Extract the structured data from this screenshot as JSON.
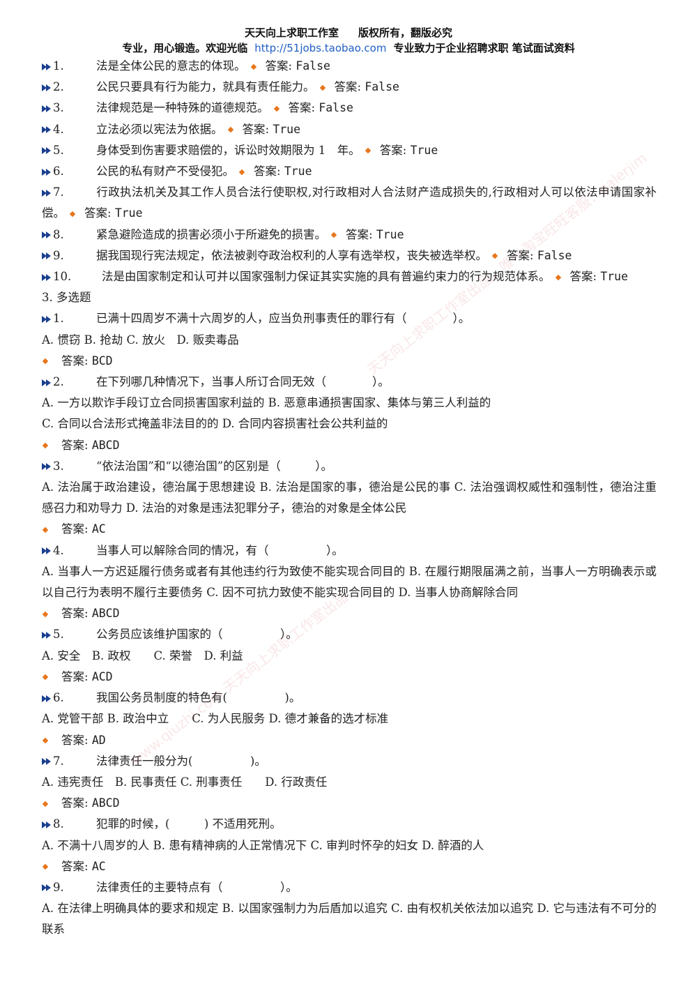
{
  "header": {
    "studio": "天天向上求职工作室",
    "copyright": "版权所有，翻版必究",
    "slogan": "专业，用心锻造。欢迎光临",
    "url": "http://51jobs.taobao.com",
    "tagline": "专业致力于企业招聘求职 笔试面试资料"
  },
  "answer_label": "答案:",
  "truefalse": [
    {
      "num": "1.",
      "text": "法是全体公民的意志的体现。",
      "answer": "False"
    },
    {
      "num": "2.",
      "text": "公民只要具有行为能力，就具有责任能力。",
      "answer": "False"
    },
    {
      "num": "3.",
      "text": "法律规范是一种特殊的道德规范。",
      "answer": "False"
    },
    {
      "num": "4.",
      "text": "立法必须以宪法为依据。",
      "answer": "True"
    },
    {
      "num": "5.",
      "text": "身体受到伤害要求赔偿的，诉讼时效期限为 1　年。",
      "answer": "True"
    },
    {
      "num": "6.",
      "text": "公民的私有财产不受侵犯。",
      "answer": "True"
    },
    {
      "num": "7.",
      "text": "行政执法机关及其工作人员合法行使职权,对行政相对人合法财产造成损失的,行政相对人可以依法申请国家补偿。",
      "answer": "True"
    },
    {
      "num": "8.",
      "text": "紧急避险造成的损害必须小于所避免的损害。",
      "answer": "True"
    },
    {
      "num": "9.",
      "text": "据我国现行宪法规定，依法被剥夺政治权利的人享有选举权，丧失被选举权。",
      "answer": "False"
    },
    {
      "num": "10.",
      "text": "法是由国家制定和认可并以国家强制力保证其实实施的具有普遍约束力的行为规范体系。",
      "answer": "True"
    }
  ],
  "section_title": "3. 多选题",
  "multi": [
    {
      "num": "1.",
      "question": "已满十四周岁不满十六周岁的人，应当负刑事责任的罪行有（　　　　）。",
      "options": "A. 惯窃 B. 抢劫 C. 放火　D. 贩卖毒品",
      "answer": "BCD"
    },
    {
      "num": "2.",
      "question": "在下列哪几种情况下，当事人所订合同无效（　　　　）。",
      "options": "A. 一方以欺诈手段订立合同损害国家利益的 B. 恶意串通损害国家、集体与第三人利益的\nC. 合同以合法形式掩盖非法目的的 D. 合同内容损害社会公共利益的",
      "answer": "ABCD"
    },
    {
      "num": "3.",
      "question": "“依法治国”和“以德治国”的区别是（　　　）。",
      "options": "A. 法治属于政治建设，德治属于思想建设 B. 法治是国家的事，德治是公民的事 C. 法治强调权威性和强制性，德治注重感召力和劝导力 D. 法治的对象是违法犯罪分子，德治的对象是全体公民",
      "answer": "AC"
    },
    {
      "num": "4.",
      "question": "当事人可以解除合同的情况，有（　　　　　）。",
      "options": "A. 当事人一方迟延履行债务或者有其他违约行为致使不能实现合同目的 B. 在履行期限届满之前，当事人一方明确表示或以自己行为表明不履行主要债务 C. 因不可抗力致使不能实现合同目的 D. 当事人协商解除合同",
      "answer": "ABCD"
    },
    {
      "num": "5.",
      "question": "公务员应该维护国家的（　　　　　）。",
      "options": "A. 安全　B. 政权　　C. 荣誉　D. 利益",
      "answer": "ACD"
    },
    {
      "num": "6.",
      "question": "我国公务员制度的特色有(　　　　　)。",
      "options": "A. 党管干部 B. 政治中立　　C. 为人民服务 D. 德才兼备的选才标准",
      "answer": "AD"
    },
    {
      "num": "7.",
      "question": "法律责任一般分为(　　　　　)。",
      "options": "A. 违宪责任　B. 民事责任 C. 刑事责任　　D. 行政责任",
      "answer": "ABCD"
    },
    {
      "num": "8.",
      "question": "犯罪的时候，(　　　) 不适用死刑。",
      "options": "A. 不满十八周岁的人 B. 患有精神病的人正常情况下 C. 审判时怀孕的妇女 D. 醉酒的人",
      "answer": "AC"
    },
    {
      "num": "9.",
      "question": "法律责任的主要特点有（　　　　　）。",
      "options": "A. 在法律上明确具体的要求和规定 B. 以国家强制力为后盾加以追究 C. 由有权机关依法加以追究 D. 它与违法有不可分的联系",
      "answer": ""
    }
  ],
  "watermarks": [
    "天天向上求职工作室出品，唯一淘宝旺旺客服：galerjim",
    "www.qiuzhi.com 天天向上求职工作室出品"
  ]
}
